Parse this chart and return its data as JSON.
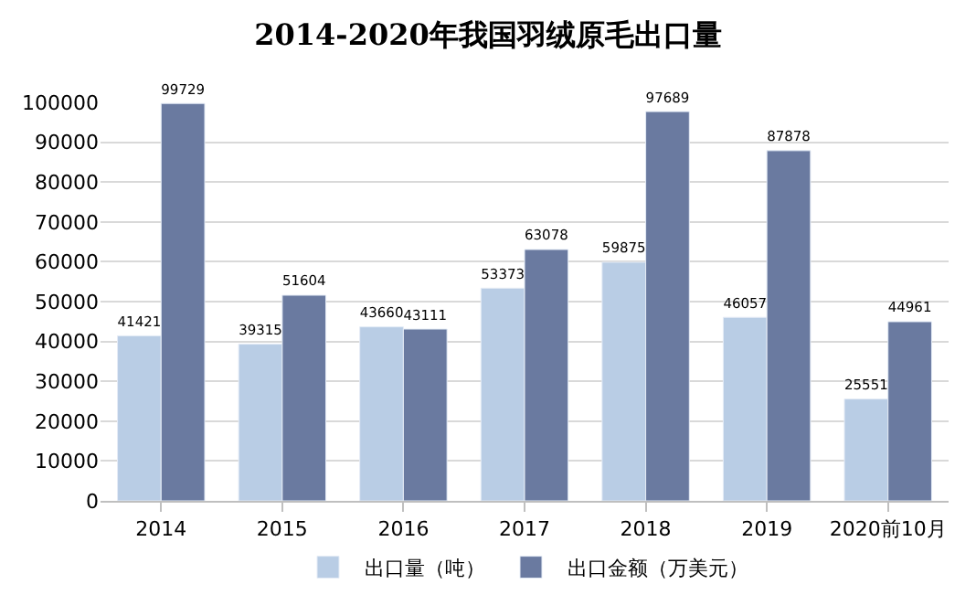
{
  "chart_data": {
    "type": "bar",
    "title": "2014-2020年我国羽绒原毛出口量",
    "categories": [
      "2014",
      "2015",
      "2016",
      "2017",
      "2018",
      "2019",
      "2020前10月"
    ],
    "series": [
      {
        "name": "出口量（吨）",
        "color": "#b9cde5",
        "values": [
          41421,
          39315,
          43660,
          53373,
          59875,
          46057,
          25551
        ]
      },
      {
        "name": "出口金额（万美元）",
        "color": "#6a7aa0",
        "values": [
          99729,
          51604,
          43111,
          63078,
          97689,
          87878,
          44961
        ]
      }
    ],
    "ylim": [
      0,
      100000
    ],
    "yticks": [
      0,
      10000,
      20000,
      30000,
      40000,
      50000,
      60000,
      70000,
      80000,
      90000,
      100000
    ],
    "grid": "y",
    "legend": "bottom",
    "data_labels": true
  }
}
